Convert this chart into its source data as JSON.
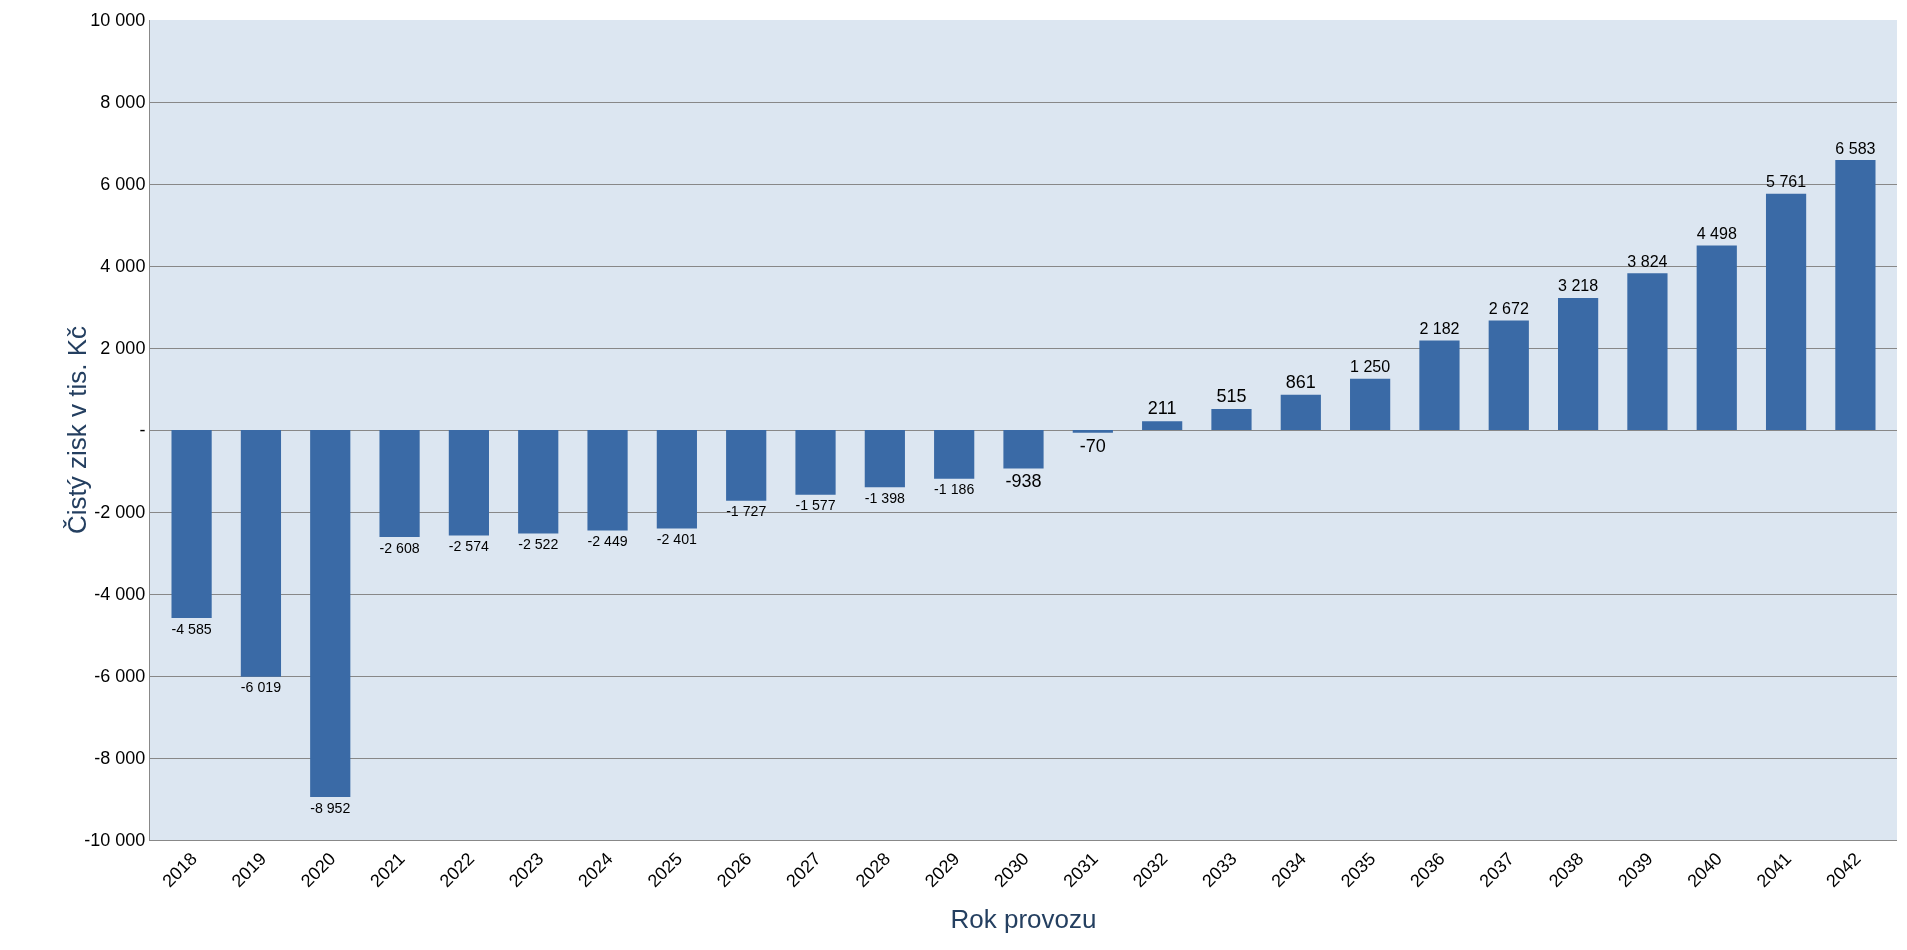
{
  "chart_data": {
    "type": "bar",
    "xlabel": "Rok provozu",
    "ylabel": "Čistý zisk v tis. Kč",
    "categories": [
      "2018",
      "2019",
      "2020",
      "2021",
      "2022",
      "2023",
      "2024",
      "2025",
      "2026",
      "2027",
      "2028",
      "2029",
      "2030",
      "2031",
      "2032",
      "2033",
      "2034",
      "2035",
      "2036",
      "2037",
      "2038",
      "2039",
      "2040",
      "2041",
      "2042"
    ],
    "values": [
      -4585,
      -6019,
      -8952,
      -2608,
      -2574,
      -2522,
      -2449,
      -2401,
      -1727,
      -1577,
      -1398,
      -1186,
      -938,
      -70,
      211,
      515,
      861,
      1250,
      2182,
      2672,
      3218,
      3824,
      4498,
      5761,
      6583
    ],
    "value_labels": [
      "-4 585",
      "-6 019",
      "-8 952",
      "-2 608",
      "-2 574",
      "-2 522",
      "-2 449",
      "-2 401",
      "-1 727",
      "-1 577",
      "-1 398",
      "-1 186",
      "-938",
      "-70",
      "211",
      "515",
      "861",
      "1 250",
      "2 182",
      "2 672",
      "3 218",
      "3 824",
      "4 498",
      "5 761",
      "6 583"
    ],
    "color": "#3a6aa6",
    "ylim": [
      -10000,
      10000
    ],
    "yticks": [
      {
        "value": -10000,
        "label": "-10 000"
      },
      {
        "value": -8000,
        "label": "-8 000"
      },
      {
        "value": -6000,
        "label": "-6 000"
      },
      {
        "value": -4000,
        "label": "-4 000"
      },
      {
        "value": -2000,
        "label": "-2 000"
      },
      {
        "value": 0,
        "label": "-"
      },
      {
        "value": 2000,
        "label": "2 000"
      },
      {
        "value": 4000,
        "label": "4 000"
      },
      {
        "value": 6000,
        "label": "6 000"
      },
      {
        "value": 8000,
        "label": "8 000"
      },
      {
        "value": 10000,
        "label": "10 000"
      }
    ],
    "grid": "y",
    "legend": false
  }
}
